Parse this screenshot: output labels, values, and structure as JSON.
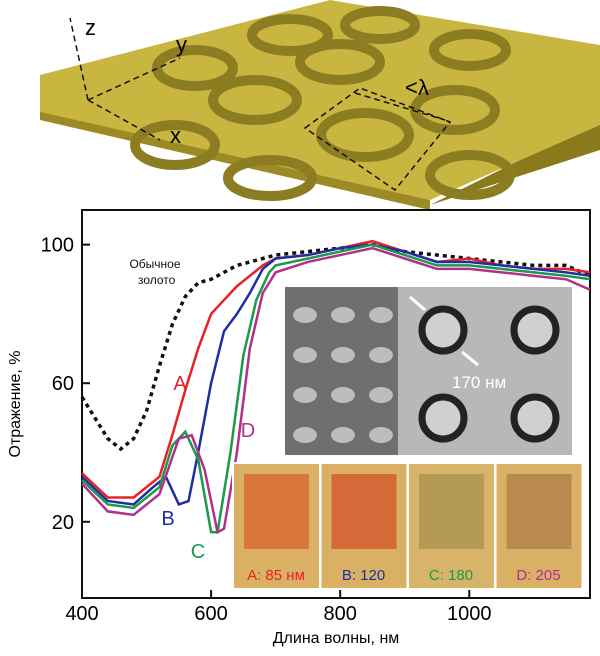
{
  "illustration": {
    "labels": [
      "z",
      "y",
      "x",
      "<λ"
    ]
  },
  "chart_data": {
    "type": "line",
    "ylabel": "Отражение, %",
    "xlabel": "Длина волны, нм",
    "xlim": [
      400,
      1187
    ],
    "ylim": [
      -2,
      110
    ],
    "xticks": [
      400,
      600,
      800,
      1000
    ],
    "yticks": [
      20,
      60,
      100
    ],
    "series": [
      {
        "name": "Обычное золото",
        "color": "#111111",
        "dashed": true,
        "x": [
          400,
          420,
          440,
          460,
          480,
          500,
          520,
          540,
          560,
          580,
          600,
          620,
          640,
          660,
          680,
          700,
          750,
          800,
          850,
          900,
          950,
          1000,
          1050,
          1100,
          1150,
          1187
        ],
        "values": [
          56,
          50,
          44,
          41,
          44,
          52,
          65,
          77,
          85,
          89,
          90,
          92,
          94,
          95,
          96,
          97,
          98,
          99,
          100,
          98,
          97,
          96,
          95,
          94,
          94,
          91
        ]
      },
      {
        "name": "A",
        "color": "#e8202a",
        "dashed": false,
        "x": [
          400,
          440,
          480,
          520,
          540,
          560,
          580,
          600,
          620,
          640,
          660,
          680,
          700,
          750,
          800,
          850,
          900,
          950,
          1000,
          1050,
          1100,
          1150,
          1187
        ],
        "values": [
          34,
          27,
          27,
          33,
          45,
          58,
          70,
          80,
          84,
          88,
          91,
          94,
          96,
          97,
          99,
          101,
          98,
          95,
          96,
          94,
          93,
          93,
          92
        ]
      },
      {
        "name": "B",
        "color": "#1f2fa0",
        "dashed": false,
        "x": [
          400,
          440,
          480,
          510,
          530,
          550,
          565,
          580,
          600,
          620,
          640,
          660,
          680,
          700,
          750,
          800,
          850,
          900,
          950,
          1000,
          1050,
          1100,
          1150,
          1187
        ],
        "values": [
          33,
          26,
          25,
          30,
          33,
          25,
          26,
          40,
          60,
          75,
          80,
          86,
          93,
          96,
          97,
          99,
          100,
          98,
          95,
          95,
          94,
          93,
          92,
          91
        ]
      },
      {
        "name": "C",
        "color": "#1a9a4a",
        "dashed": false,
        "x": [
          400,
          440,
          480,
          520,
          540,
          560,
          580,
          600,
          610,
          630,
          650,
          670,
          690,
          700,
          750,
          800,
          850,
          900,
          950,
          1000,
          1050,
          1100,
          1150,
          1187
        ],
        "values": [
          32,
          25,
          24,
          30,
          42,
          46,
          38,
          17,
          17,
          40,
          68,
          84,
          92,
          94,
          96,
          98,
          100,
          97,
          94,
          94,
          93,
          92,
          91,
          90
        ]
      },
      {
        "name": "D",
        "color": "#b0308a",
        "dashed": false,
        "x": [
          400,
          440,
          480,
          520,
          550,
          570,
          590,
          610,
          620,
          640,
          660,
          680,
          700,
          750,
          800,
          850,
          900,
          950,
          1000,
          1050,
          1100,
          1150,
          1187
        ],
        "values": [
          31,
          23,
          22,
          28,
          44,
          45,
          35,
          17,
          18,
          40,
          70,
          86,
          92,
          95,
          97,
          99,
          96,
          93,
          93,
          92,
          91,
          90,
          87
        ]
      }
    ],
    "inset_label": "170 нм",
    "sample_labels": [
      "A: 85 нм",
      "B: 120",
      "C: 180",
      "D: 205"
    ]
  }
}
